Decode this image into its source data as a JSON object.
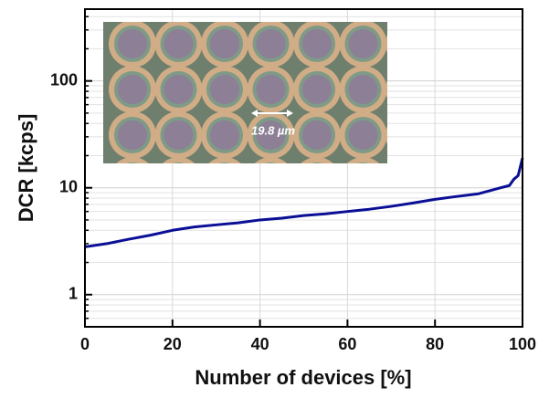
{
  "chart_data": {
    "type": "line",
    "x_label": "Number of devices [%]",
    "y_label": "DCR [kcps]",
    "annotation": "19.8 µm",
    "x": [
      0,
      5,
      10,
      15,
      20,
      25,
      30,
      35,
      40,
      45,
      50,
      55,
      60,
      65,
      70,
      75,
      80,
      85,
      90,
      95,
      97,
      98,
      99,
      100
    ],
    "series": [
      {
        "name": "DCR",
        "color": "#0a0f96",
        "values": [
          2.8,
          3.0,
          3.3,
          3.6,
          4.0,
          4.3,
          4.5,
          4.7,
          5.0,
          5.2,
          5.5,
          5.7,
          6.0,
          6.3,
          6.7,
          7.2,
          7.8,
          8.3,
          8.8,
          10.0,
          10.5,
          12.0,
          13.0,
          19.0
        ]
      }
    ],
    "xlim": [
      0,
      100
    ],
    "xticks": [
      0,
      20,
      40,
      60,
      80,
      100
    ],
    "ylim": [
      0.5,
      470
    ],
    "yticks": [
      1,
      10,
      100
    ],
    "minor_yticks": [
      0.6,
      0.7,
      0.8,
      0.9,
      2,
      3,
      4,
      5,
      6,
      7,
      8,
      9,
      20,
      30,
      40,
      50,
      60,
      70,
      80,
      90,
      200,
      300,
      400
    ],
    "log_y": true,
    "grid": true
  }
}
